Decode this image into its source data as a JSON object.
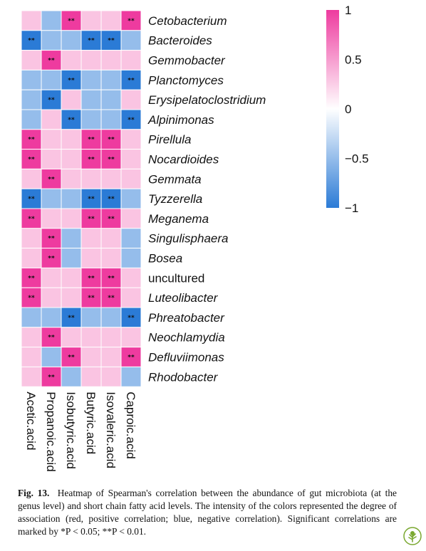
{
  "chart_data": {
    "type": "heatmap",
    "rows": [
      "Cetobacterium",
      "Bacteroides",
      "Gemmobacter",
      "Planctomyces",
      "Erysipelatoclostridium",
      "Alpinimonas",
      "Pirellula",
      "Nocardioides",
      "Gemmata",
      "Tyzzerella",
      "Meganema",
      "Singulisphaera",
      "Bosea",
      "uncultured",
      "Luteolibacter",
      "Phreatobacter",
      "Neochlamydia",
      "Defluviimonas",
      "Rhodobacter"
    ],
    "columns": [
      "Acetic.acid",
      "Propanoic.acid",
      "Isobutyric.acid",
      "Butyric.acid",
      "Isovaleric.acid",
      "Caproic.acid"
    ],
    "values": [
      [
        0.3,
        -0.5,
        1.0,
        0.3,
        0.3,
        1.0
      ],
      [
        -1.0,
        -0.5,
        -0.5,
        -1.0,
        -1.0,
        -0.5
      ],
      [
        0.3,
        1.0,
        0.3,
        0.3,
        0.3,
        0.3
      ],
      [
        -0.5,
        -0.5,
        -1.0,
        -0.5,
        -0.5,
        -1.0
      ],
      [
        -0.5,
        -1.0,
        0.3,
        -0.5,
        -0.5,
        0.3
      ],
      [
        -0.5,
        0.3,
        -1.0,
        -0.5,
        -0.5,
        -1.0
      ],
      [
        1.0,
        0.3,
        0.3,
        1.0,
        1.0,
        0.3
      ],
      [
        1.0,
        0.3,
        0.3,
        1.0,
        1.0,
        0.3
      ],
      [
        0.3,
        1.0,
        0.3,
        0.3,
        0.3,
        0.3
      ],
      [
        -1.0,
        -0.5,
        -0.5,
        -1.0,
        -1.0,
        -0.5
      ],
      [
        1.0,
        0.3,
        0.3,
        1.0,
        1.0,
        0.3
      ],
      [
        0.3,
        1.0,
        -0.5,
        0.3,
        0.3,
        -0.5
      ],
      [
        0.3,
        1.0,
        -0.5,
        0.3,
        0.3,
        -0.5
      ],
      [
        1.0,
        0.3,
        0.3,
        1.0,
        1.0,
        0.3
      ],
      [
        1.0,
        0.3,
        0.3,
        1.0,
        1.0,
        0.3
      ],
      [
        -0.5,
        -0.5,
        -1.0,
        -0.5,
        -0.5,
        -1.0
      ],
      [
        0.3,
        1.0,
        0.3,
        0.3,
        0.3,
        0.3
      ],
      [
        0.3,
        -0.5,
        1.0,
        0.3,
        0.3,
        1.0
      ],
      [
        0.3,
        1.0,
        -0.5,
        0.3,
        0.3,
        -0.5
      ]
    ],
    "significance": [
      [
        "",
        "",
        "**",
        "",
        "",
        "**"
      ],
      [
        "**",
        "",
        "",
        "**",
        "**",
        ""
      ],
      [
        "",
        "**",
        "",
        "",
        "",
        ""
      ],
      [
        "",
        "",
        "**",
        "",
        "",
        "**"
      ],
      [
        "",
        "**",
        "",
        "",
        "",
        ""
      ],
      [
        "",
        "",
        "**",
        "",
        "",
        "**"
      ],
      [
        "**",
        "",
        "",
        "**",
        "**",
        ""
      ],
      [
        "**",
        "",
        "",
        "**",
        "**",
        ""
      ],
      [
        "",
        "**",
        "",
        "",
        "",
        ""
      ],
      [
        "**",
        "",
        "",
        "**",
        "**",
        ""
      ],
      [
        "**",
        "",
        "",
        "**",
        "**",
        ""
      ],
      [
        "",
        "**",
        "",
        "",
        "",
        ""
      ],
      [
        "",
        "**",
        "",
        "",
        "",
        ""
      ],
      [
        "**",
        "",
        "",
        "**",
        "**",
        ""
      ],
      [
        "**",
        "",
        "",
        "**",
        "**",
        ""
      ],
      [
        "",
        "",
        "**",
        "",
        "",
        "**"
      ],
      [
        "",
        "**",
        "",
        "",
        "",
        ""
      ],
      [
        "",
        "",
        "**",
        "",
        "",
        "**"
      ],
      [
        "",
        "**",
        "",
        "",
        "",
        ""
      ]
    ],
    "italic_rows_exclude": [
      "uncultured"
    ],
    "colorbar": {
      "range": [
        -1,
        1
      ],
      "ticks": [
        1,
        0.5,
        0,
        -0.5,
        -1
      ],
      "tick_labels": [
        "1",
        "0.5",
        "0",
        "−0.5",
        "−1"
      ],
      "low_color": "#2b7bd6",
      "mid_color": "#ffffff",
      "high_color": "#ee3b9f"
    }
  },
  "caption": {
    "label": "Fig. 13.",
    "text": "Heatmap of Spearman's correlation between the abundance of gut microbiota (at the genus level) and short chain fatty acid levels. The intensity of the colors represented the degree of association (red, positive correlation; blue, negative correlation). Significant correlations are marked by *P < 0.05; **P < 0.01."
  },
  "logo_icon": "elsevier-tree-icon"
}
